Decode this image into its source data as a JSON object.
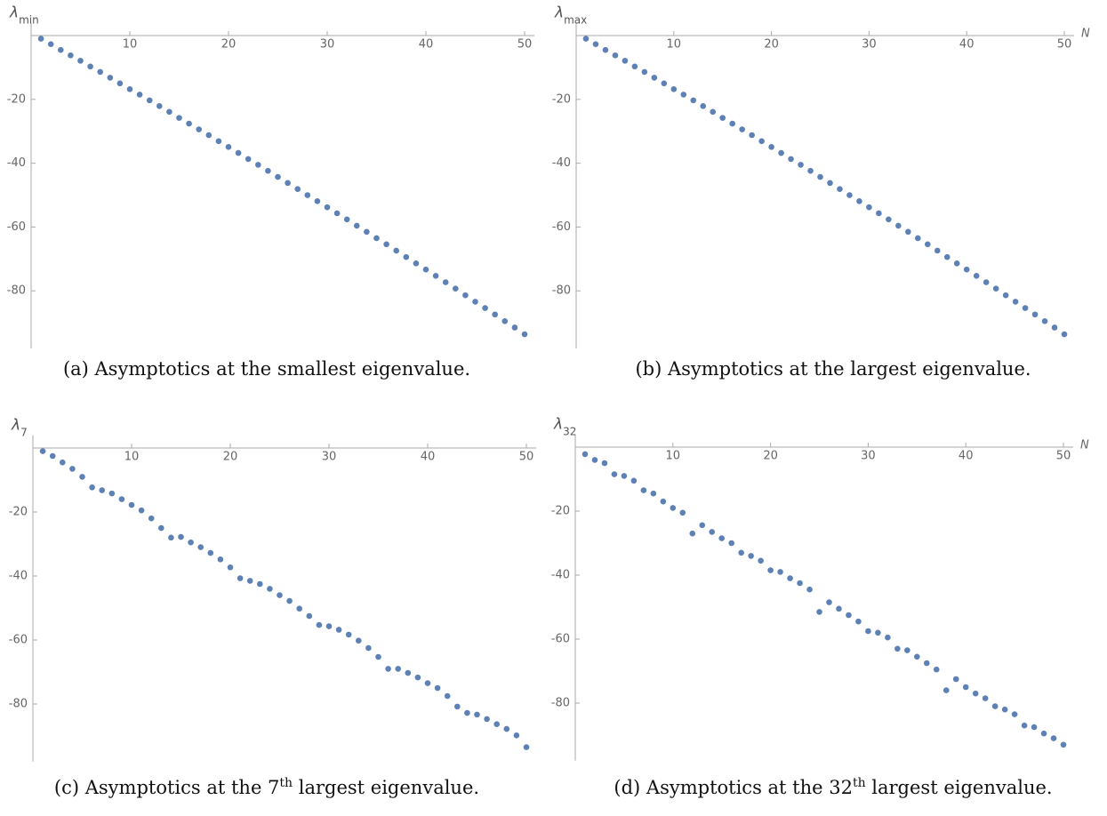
{
  "chart_data": [
    {
      "type": "scatter",
      "ylabel": "λ",
      "ylabel_subscript": "min",
      "caption": [
        "(a) Asymptotics at the smallest eigenvalue."
      ],
      "color": "#5e81b5",
      "xlim": [
        0,
        51
      ],
      "ylim": [
        -98,
        4
      ],
      "xticks": [
        10,
        20,
        30,
        40,
        50
      ],
      "yticks": [
        -20,
        -40,
        -60,
        -80
      ],
      "x": [
        1,
        2,
        3,
        4,
        5,
        6,
        7,
        8,
        9,
        10,
        11,
        12,
        13,
        14,
        15,
        16,
        17,
        18,
        19,
        20,
        21,
        22,
        23,
        24,
        25,
        26,
        27,
        28,
        29,
        30,
        31,
        32,
        33,
        34,
        35,
        36,
        37,
        38,
        39,
        40,
        41,
        42,
        43,
        44,
        45,
        46,
        47,
        48,
        49,
        50
      ],
      "values": [
        -1.0,
        -2.7,
        -4.5,
        -6.2,
        -7.9,
        -9.7,
        -11.4,
        -13.2,
        -15.0,
        -16.8,
        -18.5,
        -20.3,
        -22.1,
        -23.9,
        -25.8,
        -27.6,
        -29.4,
        -31.2,
        -33.1,
        -34.9,
        -36.8,
        -38.7,
        -40.5,
        -42.4,
        -44.3,
        -46.2,
        -48.1,
        -50.0,
        -51.9,
        -53.8,
        -55.7,
        -57.6,
        -59.6,
        -61.5,
        -63.5,
        -65.4,
        -67.4,
        -69.4,
        -71.4,
        -73.3,
        -75.3,
        -77.3,
        -79.3,
        -81.4,
        -83.4,
        -85.4,
        -87.4,
        -89.5,
        -91.5,
        -93.6
      ]
    },
    {
      "type": "scatter",
      "ylabel": "λ",
      "ylabel_subscript": "max",
      "xlabel": "N",
      "caption": [
        "(b) Asymptotics at the largest eigenvalue."
      ],
      "color": "#5e81b5",
      "xlim": [
        0,
        51
      ],
      "ylim": [
        -98,
        4
      ],
      "xticks": [
        10,
        20,
        30,
        40,
        50
      ],
      "yticks": [
        -20,
        -40,
        -60,
        -80
      ],
      "x": [
        1,
        2,
        3,
        4,
        5,
        6,
        7,
        8,
        9,
        10,
        11,
        12,
        13,
        14,
        15,
        16,
        17,
        18,
        19,
        20,
        21,
        22,
        23,
        24,
        25,
        26,
        27,
        28,
        29,
        30,
        31,
        32,
        33,
        34,
        35,
        36,
        37,
        38,
        39,
        40,
        41,
        42,
        43,
        44,
        45,
        46,
        47,
        48,
        49,
        50
      ],
      "values": [
        -1.0,
        -2.7,
        -4.5,
        -6.2,
        -7.9,
        -9.7,
        -11.4,
        -13.2,
        -15.0,
        -16.8,
        -18.5,
        -20.3,
        -22.1,
        -23.9,
        -25.8,
        -27.6,
        -29.4,
        -31.2,
        -33.1,
        -34.9,
        -36.8,
        -38.7,
        -40.5,
        -42.4,
        -44.3,
        -46.2,
        -48.1,
        -50.0,
        -51.9,
        -53.8,
        -55.7,
        -57.6,
        -59.6,
        -61.5,
        -63.5,
        -65.4,
        -67.4,
        -69.4,
        -71.4,
        -73.3,
        -75.3,
        -77.3,
        -79.3,
        -81.4,
        -83.4,
        -85.4,
        -87.4,
        -89.5,
        -91.5,
        -93.6
      ]
    },
    {
      "type": "scatter",
      "ylabel": "λ",
      "ylabel_subscript": "7",
      "caption": [
        "(c) Asymptotics at the 7",
        "th",
        " largest eigenvalue."
      ],
      "color": "#5e81b5",
      "xlim": [
        0,
        51
      ],
      "ylim": [
        -98,
        4
      ],
      "xticks": [
        10,
        20,
        30,
        40,
        50
      ],
      "yticks": [
        -20,
        -40,
        -60,
        -80
      ],
      "x": [
        1,
        2,
        3,
        4,
        5,
        6,
        7,
        8,
        9,
        10,
        11,
        12,
        13,
        14,
        15,
        16,
        17,
        18,
        19,
        20,
        21,
        22,
        23,
        24,
        25,
        26,
        27,
        28,
        29,
        30,
        31,
        32,
        33,
        34,
        35,
        36,
        37,
        38,
        39,
        40,
        41,
        42,
        43,
        44,
        45,
        46,
        47,
        48,
        49,
        50
      ],
      "values": [
        -1,
        -2.5,
        -4.5,
        -6.5,
        -9,
        -12.3,
        -13.2,
        -14.2,
        -16,
        -17.8,
        -19.5,
        -22,
        -25,
        -28,
        -27.8,
        -29.5,
        -31,
        -32.8,
        -34.8,
        -37.3,
        -40.7,
        -41.5,
        -42.5,
        -44,
        -46,
        -47.8,
        -50.2,
        -52.5,
        -55.3,
        -55.7,
        -56.8,
        -58.3,
        -60.2,
        -62.5,
        -65.3,
        -69,
        -69,
        -70.3,
        -71.7,
        -73.5,
        -75,
        -77.5,
        -80.8,
        -82.8,
        -83.3,
        -84.7,
        -86.3,
        -87.8,
        -89.8,
        -93.5
      ]
    },
    {
      "type": "scatter",
      "ylabel": "λ",
      "ylabel_subscript": "32",
      "xlabel": "N",
      "caption": [
        "(d) Asymptotics at the 32",
        "th",
        " largest eigenvalue."
      ],
      "color": "#5e81b5",
      "xlim": [
        0,
        51
      ],
      "ylim": [
        -98,
        4
      ],
      "xticks": [
        10,
        20,
        30,
        40,
        50
      ],
      "yticks": [
        -20,
        -40,
        -60,
        -80
      ],
      "x": [
        1,
        2,
        3,
        4,
        5,
        6,
        7,
        8,
        9,
        10,
        11,
        12,
        13,
        14,
        15,
        16,
        17,
        18,
        19,
        20,
        21,
        22,
        23,
        24,
        25,
        26,
        27,
        28,
        29,
        30,
        31,
        32,
        33,
        34,
        35,
        36,
        37,
        38,
        39,
        40,
        41,
        42,
        43,
        44,
        45,
        46,
        47,
        48,
        49,
        50
      ],
      "values": [
        -2.2,
        -4,
        -5,
        -8.5,
        -9,
        -10.5,
        -13.5,
        -14.5,
        -17,
        -19,
        -20.5,
        -27,
        -24.4,
        -26.5,
        -28.5,
        -30,
        -33,
        -34,
        -35.5,
        -38.5,
        -39,
        -41,
        -42.5,
        -44.5,
        -51.5,
        -48.5,
        -50.5,
        -52.5,
        -54.5,
        -57.5,
        -58,
        -59.5,
        -63,
        -63.5,
        -65.5,
        -67.5,
        -69.5,
        -76,
        -72.5,
        -75,
        -77,
        -78.5,
        -81,
        -82,
        -83.5,
        -87,
        -87.5,
        -89.5,
        -91,
        -93
      ]
    }
  ]
}
